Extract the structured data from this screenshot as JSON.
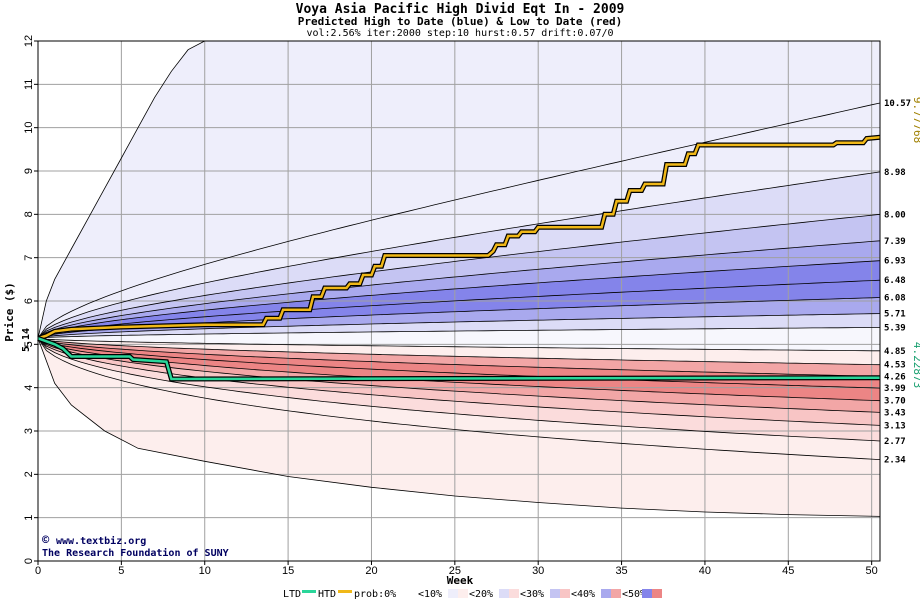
{
  "chart_data": {
    "type": "area",
    "title": "Voya Asia Pacific High Divid Eqt In - 2009",
    "subtitle": "Predicted High to Date (blue) &  Low to Date (red)",
    "params": "vol:2.56% iter:2000 step:10 hurst:0.57 drift:0.07/0",
    "xlabel": "Week",
    "ylabel": "Price ($)",
    "xlim": [
      0,
      50.5
    ],
    "ylim": [
      0,
      12
    ],
    "xticks": [
      0,
      5,
      10,
      15,
      20,
      25,
      30,
      35,
      40,
      45,
      50
    ],
    "yticks": [
      0,
      1,
      2,
      3,
      4,
      5,
      6,
      7,
      8,
      9,
      10,
      11,
      12
    ],
    "start_price": "5.14",
    "start_value": 5.14,
    "last_high": "9.77768",
    "last_high_value": 9.77768,
    "last_low": "4.22873",
    "last_low_value": 4.22873,
    "upper_envelope": [
      {
        "x": 0,
        "y": 5.14
      },
      {
        "x": 0.5,
        "y": 6.0
      },
      {
        "x": 1,
        "y": 6.5
      },
      {
        "x": 2,
        "y": 7.2
      },
      {
        "x": 3,
        "y": 7.9
      },
      {
        "x": 4,
        "y": 8.6
      },
      {
        "x": 5,
        "y": 9.3
      },
      {
        "x": 6,
        "y": 10.0
      },
      {
        "x": 7,
        "y": 10.7
      },
      {
        "x": 8,
        "y": 11.3
      },
      {
        "x": 9,
        "y": 11.8
      },
      {
        "x": 10,
        "y": 12.0
      }
    ],
    "lower_envelope": [
      {
        "x": 0,
        "y": 5.14
      },
      {
        "x": 1,
        "y": 4.1
      },
      {
        "x": 2,
        "y": 3.6
      },
      {
        "x": 4,
        "y": 3.0
      },
      {
        "x": 6,
        "y": 2.6
      },
      {
        "x": 10,
        "y": 2.3
      },
      {
        "x": 15,
        "y": 1.95
      },
      {
        "x": 20,
        "y": 1.7
      },
      {
        "x": 25,
        "y": 1.5
      },
      {
        "x": 30,
        "y": 1.35
      },
      {
        "x": 35,
        "y": 1.22
      },
      {
        "x": 40,
        "y": 1.13
      },
      {
        "x": 45,
        "y": 1.07
      },
      {
        "x": 50.5,
        "y": 1.03
      }
    ],
    "percentile_end_labels": [
      "10.57",
      "8.98",
      "8.00",
      "7.39",
      "6.93",
      "6.48",
      "6.08",
      "5.71",
      "5.39",
      "4.85",
      "4.53",
      "4.26",
      "3.99",
      "3.70",
      "3.43",
      "3.13",
      "2.77",
      "2.34"
    ],
    "percentile_end_values": [
      10.57,
      8.98,
      8.0,
      7.39,
      6.93,
      6.48,
      6.08,
      5.71,
      5.39,
      4.85,
      4.53,
      4.26,
      3.99,
      3.7,
      3.43,
      3.13,
      2.77,
      2.34
    ],
    "zone_colors": {
      "lt10_blue": "#eeeefb",
      "lt20_blue": "#dcdcf7",
      "lt30_blue": "#c4c4f2",
      "lt40_blue": "#a9a9ee",
      "lt50_blue": "#8484ea",
      "lt10_red": "#fdeeed",
      "lt20_red": "#fbdcdc",
      "lt30_red": "#f8c5c5",
      "lt40_red": "#f2a6a6",
      "lt50_red": "#ec8585"
    },
    "high_to_date": [
      {
        "x": 0,
        "y": 5.14
      },
      {
        "x": 0.5,
        "y": 5.2
      },
      {
        "x": 1,
        "y": 5.3
      },
      {
        "x": 2,
        "y": 5.35
      },
      {
        "x": 5,
        "y": 5.4
      },
      {
        "x": 10,
        "y": 5.45
      },
      {
        "x": 13.5,
        "y": 5.45
      },
      {
        "x": 13.7,
        "y": 5.6
      },
      {
        "x": 14.5,
        "y": 5.6
      },
      {
        "x": 14.7,
        "y": 5.8
      },
      {
        "x": 16.3,
        "y": 5.8
      },
      {
        "x": 16.5,
        "y": 6.1
      },
      {
        "x": 17,
        "y": 6.1
      },
      {
        "x": 17.2,
        "y": 6.3
      },
      {
        "x": 18.5,
        "y": 6.3
      },
      {
        "x": 18.7,
        "y": 6.4
      },
      {
        "x": 19.3,
        "y": 6.4
      },
      {
        "x": 19.5,
        "y": 6.6
      },
      {
        "x": 20,
        "y": 6.6
      },
      {
        "x": 20.2,
        "y": 6.8
      },
      {
        "x": 20.6,
        "y": 6.8
      },
      {
        "x": 20.8,
        "y": 7.05
      },
      {
        "x": 27,
        "y": 7.05
      },
      {
        "x": 27.3,
        "y": 7.15
      },
      {
        "x": 27.5,
        "y": 7.3
      },
      {
        "x": 28,
        "y": 7.3
      },
      {
        "x": 28.2,
        "y": 7.5
      },
      {
        "x": 28.8,
        "y": 7.5
      },
      {
        "x": 29,
        "y": 7.6
      },
      {
        "x": 29.8,
        "y": 7.6
      },
      {
        "x": 30,
        "y": 7.7
      },
      {
        "x": 33.8,
        "y": 7.7
      },
      {
        "x": 34,
        "y": 8.0
      },
      {
        "x": 34.5,
        "y": 8.0
      },
      {
        "x": 34.7,
        "y": 8.3
      },
      {
        "x": 35.3,
        "y": 8.3
      },
      {
        "x": 35.5,
        "y": 8.55
      },
      {
        "x": 36.2,
        "y": 8.55
      },
      {
        "x": 36.4,
        "y": 8.7
      },
      {
        "x": 37.5,
        "y": 8.7
      },
      {
        "x": 37.7,
        "y": 9.15
      },
      {
        "x": 38.8,
        "y": 9.15
      },
      {
        "x": 39,
        "y": 9.4
      },
      {
        "x": 39.4,
        "y": 9.4
      },
      {
        "x": 39.6,
        "y": 9.6
      },
      {
        "x": 47.7,
        "y": 9.6
      },
      {
        "x": 47.9,
        "y": 9.65
      },
      {
        "x": 49.5,
        "y": 9.65
      },
      {
        "x": 49.7,
        "y": 9.75
      },
      {
        "x": 50.5,
        "y": 9.78
      }
    ],
    "low_to_date": [
      {
        "x": 0,
        "y": 5.14
      },
      {
        "x": 1,
        "y": 5.0
      },
      {
        "x": 1.5,
        "y": 4.9
      },
      {
        "x": 2,
        "y": 4.72
      },
      {
        "x": 5.5,
        "y": 4.72
      },
      {
        "x": 5.7,
        "y": 4.65
      },
      {
        "x": 7.7,
        "y": 4.6
      },
      {
        "x": 8,
        "y": 4.2
      },
      {
        "x": 50.5,
        "y": 4.23
      }
    ],
    "legend": {
      "ltd_label": "LTD",
      "htd_label": "HTD",
      "prob_label": "prob:0%",
      "zones": [
        "<10%",
        "<20%",
        "<30%",
        "<40%",
        "<50%"
      ]
    },
    "ltd_color": "#2ad69a",
    "htd_color": "#f0b818",
    "credit_line1": "www.textbiz.org",
    "credit_symbol": "©",
    "credit_line2": "The Research Foundation of SUNY"
  }
}
